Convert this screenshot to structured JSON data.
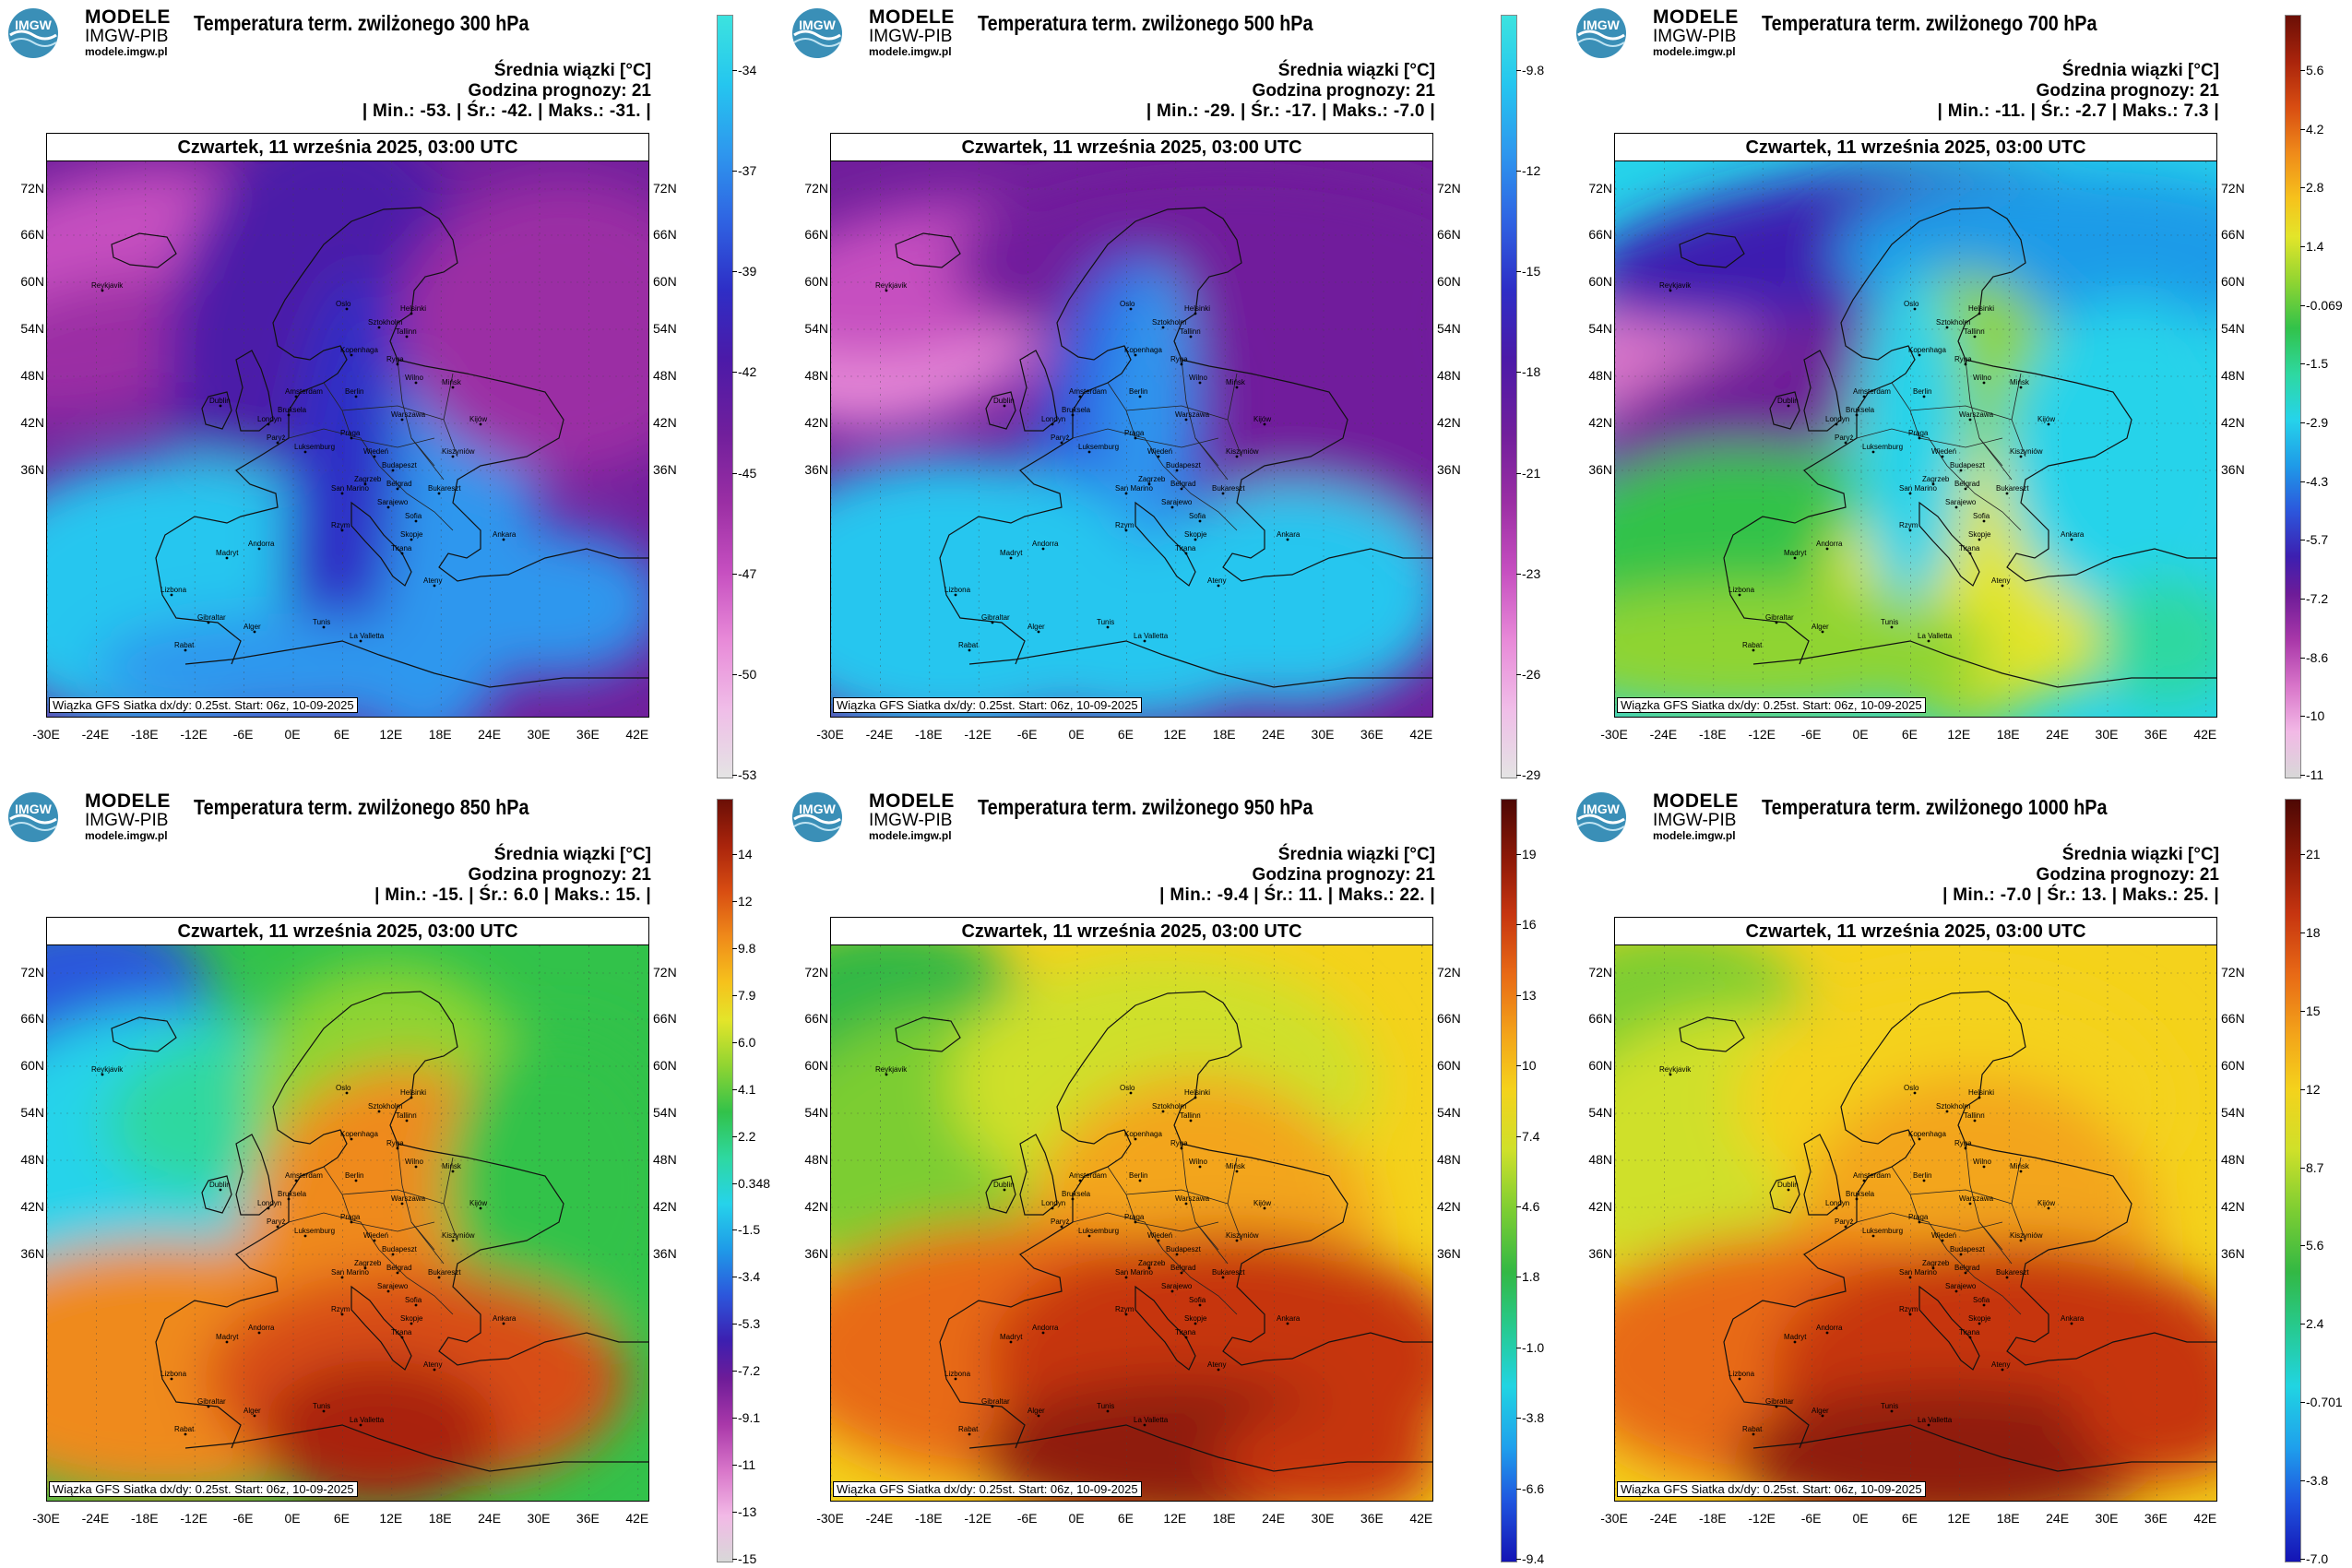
{
  "brand": {
    "line1": "MODELE",
    "line2": "IMGW-PIB",
    "line3": "modele.imgw.pl",
    "logo_text": "IMGW"
  },
  "common": {
    "unit_label": "Średnia wiązki [°C]",
    "forecast_hour": "Godzina prognozy: 21",
    "date": "Czwartek, 11 września 2025, 03:00 UTC",
    "credit": "Wiązka GFS Siatka dx/dy: 0.25st. Start: 06z, 10-09-2025",
    "lat_labels": [
      "72N",
      "66N",
      "60N",
      "54N",
      "48N",
      "42N",
      "36N"
    ],
    "lon_labels": [
      "-30E",
      "-24E",
      "-18E",
      "-12E",
      "-6E",
      "0E",
      "6E",
      "12E",
      "18E",
      "24E",
      "30E",
      "36E",
      "42E"
    ]
  },
  "panels": [
    {
      "title": "Temperatura term. zwilżonego 300 hPa",
      "min": "-53.",
      "avg": "-42.",
      "max": "-31.",
      "palette": "cold",
      "cbar_ticks": [
        "-34",
        "-37",
        "-39",
        "-42",
        "-45",
        "-47",
        "-50",
        "-53"
      ]
    },
    {
      "title": "Temperatura term. zwilżonego 500 hPa",
      "min": "-29.",
      "avg": "-17.",
      "max": "-7.0",
      "palette": "cold",
      "cbar_ticks": [
        "-9.8",
        "-12",
        "-15",
        "-18",
        "-21",
        "-23",
        "-26",
        "-29"
      ]
    },
    {
      "title": "Temperatura term. zwilżonego 700 hPa",
      "min": "-11.",
      "avg": "-2.7",
      "max": "7.3",
      "palette": "full",
      "cbar_ticks": [
        "5.6",
        "4.2",
        "2.8",
        "1.4",
        "-0.069",
        "-1.5",
        "-2.9",
        "-4.3",
        "-5.7",
        "-7.2",
        "-8.6",
        "-10",
        "-11"
      ]
    },
    {
      "title": "Temperatura term. zwilżonego 850 hPa",
      "min": "-15.",
      "avg": "6.0",
      "max": "15.",
      "palette": "full",
      "cbar_ticks": [
        "14",
        "12",
        "9.8",
        "7.9",
        "6.0",
        "4.1",
        "2.2",
        "0.348",
        "-1.5",
        "-3.4",
        "-5.3",
        "-7.2",
        "-9.1",
        "-11",
        "-13",
        "-15"
      ]
    },
    {
      "title": "Temperatura term. zwilżonego 950 hPa",
      "min": "-9.4",
      "avg": "11.",
      "max": "22.",
      "palette": "warm",
      "cbar_ticks": [
        "19",
        "16",
        "13",
        "10",
        "7.4",
        "4.6",
        "1.8",
        "-1.0",
        "-3.8",
        "-6.6",
        "-9.4"
      ]
    },
    {
      "title": "Temperatura term. zwilżonego 1000 hPa",
      "min": "-7.0",
      "avg": "13.",
      "max": "25.",
      "palette": "warm",
      "cbar_ticks": [
        "21",
        "18",
        "15",
        "12",
        "8.7",
        "5.6",
        "2.4",
        "-0.701",
        "-3.8",
        "-7.0"
      ]
    }
  ],
  "cities": [
    "Reykjavik",
    "Oslo",
    "Sztokholm",
    "Helsinki",
    "Tallinn",
    "Ryga",
    "Kopenhaga",
    "Wilno",
    "Mińsk",
    "Amsterdam",
    "Londyn",
    "Bruksela",
    "Berlin",
    "Warszawa",
    "Paryż",
    "Praga",
    "Luksemburg",
    "Wiedeń",
    "Budapeszt",
    "Kiszyniów",
    "Kijów",
    "Zagrzeb",
    "Belgrad",
    "Bukareszt",
    "San Marino",
    "Sarajewo",
    "Sofia",
    "Andorra",
    "Madryt",
    "Lizbona",
    "Rzym",
    "Skopje",
    "Ankara",
    "Tirana",
    "Ateny",
    "Gibraltar",
    "Alger",
    "Tunis",
    "La Valletta",
    "Rabat",
    "Dublin"
  ]
}
